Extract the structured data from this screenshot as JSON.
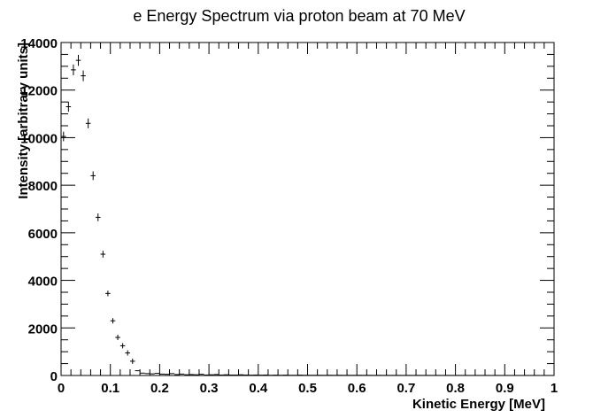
{
  "chart_data": {
    "type": "scatter",
    "title": "e Energy Spectrum via proton beam at 70 MeV",
    "xlabel": "Kinetic Energy [MeV]",
    "ylabel": "Intensity [arbitrary units]",
    "xlim": [
      0,
      1
    ],
    "ylim": [
      0,
      14000
    ],
    "x_ticks": [
      0,
      0.1,
      0.2,
      0.3,
      0.4,
      0.5,
      0.6,
      0.7,
      0.8,
      0.9,
      1
    ],
    "x_tick_labels": [
      "0",
      "0.1",
      "0.2",
      "0.3",
      "0.4",
      "0.5",
      "0.6",
      "0.7",
      "0.8",
      "0.9",
      "1"
    ],
    "y_ticks": [
      0,
      2000,
      4000,
      6000,
      8000,
      10000,
      12000,
      14000
    ],
    "y_tick_labels": [
      "0",
      "2000",
      "4000",
      "6000",
      "8000",
      "10000",
      "12000",
      "14000"
    ],
    "grid": false,
    "bin_width": 0.01,
    "series": [
      {
        "x": [
          0.005,
          0.015,
          0.025,
          0.035,
          0.045,
          0.055,
          0.065,
          0.075,
          0.085,
          0.095,
          0.105,
          0.115,
          0.125,
          0.135,
          0.145,
          0.155,
          0.165,
          0.175,
          0.185,
          0.195,
          0.205,
          0.215,
          0.225,
          0.235,
          0.245,
          0.255,
          0.265,
          0.275,
          0.285,
          0.295,
          0.305,
          0.315,
          0.325,
          0.335,
          0.345,
          0.355,
          0.365,
          0.375,
          0.385,
          0.395,
          0.405,
          0.415,
          0.425,
          0.435,
          0.445,
          0.455,
          0.465,
          0.475,
          0.485,
          0.495,
          0.505,
          0.515,
          0.525,
          0.535,
          0.545,
          0.555,
          0.565,
          0.575,
          0.585,
          0.595,
          0.605,
          0.615,
          0.625,
          0.635,
          0.645,
          0.655,
          0.665,
          0.675,
          0.685,
          0.695,
          0.705,
          0.715,
          0.725,
          0.735,
          0.745,
          0.755,
          0.765,
          0.775,
          0.785,
          0.795,
          0.805,
          0.815,
          0.825,
          0.835,
          0.845,
          0.855,
          0.865,
          0.875,
          0.885,
          0.895,
          0.905,
          0.915,
          0.925,
          0.935,
          0.945,
          0.955,
          0.965,
          0.975,
          0.985,
          0.995
        ],
        "y": [
          10050,
          11300,
          12850,
          13250,
          12600,
          10600,
          8400,
          6650,
          5100,
          3450,
          2300,
          1600,
          1250,
          950,
          600,
          200,
          100,
          80,
          70,
          90,
          60,
          50,
          80,
          40,
          60,
          30,
          40,
          30,
          50,
          20,
          30,
          40,
          20,
          30,
          20,
          20,
          30,
          20,
          15,
          20,
          15,
          20,
          10,
          15,
          10,
          15,
          10,
          10,
          15,
          10,
          10,
          10,
          10,
          8,
          10,
          8,
          10,
          8,
          8,
          8,
          10,
          8,
          8,
          6,
          8,
          6,
          6,
          6,
          6,
          5,
          6,
          5,
          6,
          5,
          5,
          5,
          5,
          4,
          5,
          4,
          5,
          4,
          4,
          4,
          4,
          4,
          4,
          3,
          4,
          3,
          3,
          3,
          3,
          3,
          3,
          3,
          3,
          2,
          2,
          2
        ]
      }
    ]
  }
}
